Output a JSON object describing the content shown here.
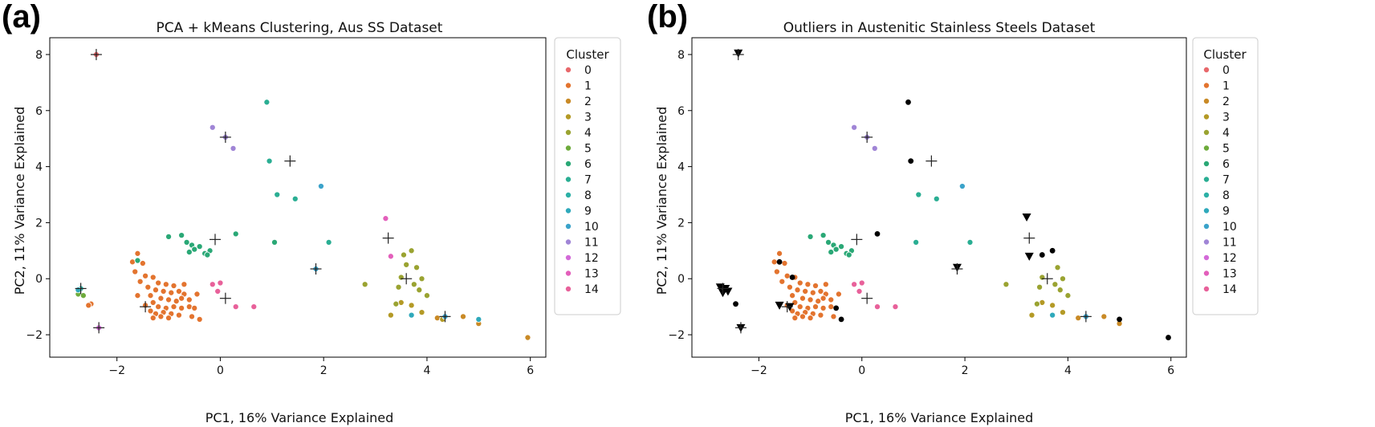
{
  "palette": [
    "#e8686b",
    "#e3742f",
    "#c98a26",
    "#b49a26",
    "#9aa331",
    "#6eab3c",
    "#2aa876",
    "#2aae93",
    "#2cb0a6",
    "#2fa9bb",
    "#3ba3ca",
    "#a085d6",
    "#d36ad8",
    "#e35fbb",
    "#e8619a"
  ],
  "chart_data": [
    {
      "type": "scatter",
      "panel_label": "(a)",
      "title": "PCA + kMeans Clustering, Aus SS Dataset",
      "xlabel": "PC1, 16% Variance Explained",
      "ylabel": "PC2, 11% Variance Explained",
      "xlim": [
        -3.3,
        6.3
      ],
      "ylim": [
        -2.8,
        8.6
      ],
      "xticks": [
        -2,
        0,
        2,
        4,
        6
      ],
      "yticks": [
        -2,
        0,
        2,
        4,
        6,
        8
      ],
      "grid": false,
      "legend": {
        "title": "Cluster",
        "placement": "outside-right",
        "entries": [
          "0",
          "1",
          "2",
          "3",
          "4",
          "5",
          "6",
          "7",
          "8",
          "9",
          "10",
          "11",
          "12",
          "13",
          "14"
        ]
      },
      "points": [
        [
          -2.4,
          8.0,
          0
        ],
        [
          -1.6,
          0.9,
          1
        ],
        [
          -1.7,
          0.6,
          1
        ],
        [
          -1.5,
          0.55,
          1
        ],
        [
          -1.65,
          0.25,
          1
        ],
        [
          -1.45,
          0.1,
          1
        ],
        [
          -1.3,
          0.05,
          1
        ],
        [
          -1.55,
          -0.1,
          1
        ],
        [
          -1.2,
          -0.15,
          1
        ],
        [
          -1.05,
          -0.2,
          1
        ],
        [
          -1.4,
          -0.3,
          1
        ],
        [
          -0.9,
          -0.25,
          1
        ],
        [
          -1.25,
          -0.4,
          1
        ],
        [
          -1.1,
          -0.45,
          1
        ],
        [
          -0.95,
          -0.5,
          1
        ],
        [
          -0.8,
          -0.45,
          1
        ],
        [
          -0.7,
          -0.55,
          1
        ],
        [
          -1.35,
          -0.6,
          1
        ],
        [
          -1.15,
          -0.7,
          1
        ],
        [
          -1.0,
          -0.75,
          1
        ],
        [
          -0.85,
          -0.8,
          1
        ],
        [
          -0.75,
          -0.7,
          1
        ],
        [
          -0.6,
          -0.75,
          1
        ],
        [
          -1.3,
          -0.85,
          1
        ],
        [
          -1.45,
          -0.95,
          1
        ],
        [
          -1.2,
          -1.0,
          1
        ],
        [
          -1.05,
          -1.05,
          1
        ],
        [
          -0.9,
          -1.0,
          1
        ],
        [
          -0.75,
          -1.05,
          1
        ],
        [
          -0.6,
          -1.0,
          1
        ],
        [
          -1.35,
          -1.15,
          1
        ],
        [
          -1.25,
          -1.25,
          1
        ],
        [
          -1.1,
          -1.2,
          1
        ],
        [
          -0.95,
          -1.25,
          1
        ],
        [
          -0.8,
          -1.3,
          1
        ],
        [
          -1.3,
          -1.4,
          1
        ],
        [
          -1.15,
          -1.35,
          1
        ],
        [
          -1.0,
          -1.4,
          1
        ],
        [
          -0.5,
          -1.05,
          1
        ],
        [
          -0.55,
          -1.35,
          1
        ],
        [
          -0.4,
          -1.45,
          1
        ],
        [
          -0.45,
          -0.55,
          1
        ],
        [
          -1.6,
          -0.6,
          1
        ],
        [
          -0.7,
          -0.2,
          1
        ],
        [
          -2.5,
          -0.9,
          1
        ],
        [
          -2.55,
          -0.95,
          1
        ],
        [
          4.7,
          -1.35,
          2
        ],
        [
          5.0,
          -1.6,
          2
        ],
        [
          5.95,
          -2.1,
          2
        ],
        [
          4.2,
          -1.4,
          2
        ],
        [
          3.3,
          -1.3,
          3
        ],
        [
          3.5,
          -0.85,
          3
        ],
        [
          3.7,
          -0.95,
          3
        ],
        [
          3.9,
          -1.2,
          3
        ],
        [
          4.3,
          -1.45,
          3
        ],
        [
          2.8,
          -0.2,
          4
        ],
        [
          3.4,
          -0.9,
          4
        ],
        [
          3.5,
          0.05,
          4
        ],
        [
          3.6,
          0.5,
          4
        ],
        [
          3.7,
          1.0,
          4
        ],
        [
          3.8,
          0.4,
          4
        ],
        [
          3.9,
          0.0,
          4
        ],
        [
          3.85,
          -0.4,
          4
        ],
        [
          4.0,
          -0.6,
          4
        ],
        [
          3.55,
          0.85,
          4
        ],
        [
          3.45,
          -0.3,
          4
        ],
        [
          3.75,
          -0.2,
          4
        ],
        [
          -2.75,
          -0.55,
          5
        ],
        [
          -2.65,
          -0.6,
          5
        ],
        [
          -1.6,
          0.65,
          6
        ],
        [
          -1.0,
          1.5,
          6
        ],
        [
          -0.75,
          1.55,
          6
        ],
        [
          -0.65,
          1.3,
          6
        ],
        [
          -0.55,
          1.2,
          6
        ],
        [
          -0.5,
          1.05,
          6
        ],
        [
          -0.4,
          1.15,
          6
        ],
        [
          -0.3,
          0.9,
          6
        ],
        [
          -0.6,
          0.95,
          6
        ],
        [
          -0.2,
          1.0,
          6
        ],
        [
          -0.25,
          0.85,
          6
        ],
        [
          0.3,
          1.6,
          6
        ],
        [
          1.05,
          1.3,
          6
        ],
        [
          0.9,
          6.3,
          7
        ],
        [
          0.95,
          4.2,
          7
        ],
        [
          1.1,
          3.0,
          7
        ],
        [
          1.45,
          2.85,
          7
        ],
        [
          2.1,
          1.3,
          7
        ],
        [
          -2.7,
          -0.35,
          8
        ],
        [
          3.7,
          -1.3,
          9
        ],
        [
          5.0,
          -1.45,
          9
        ],
        [
          -2.75,
          -0.4,
          9
        ],
        [
          1.95,
          3.3,
          10
        ],
        [
          1.85,
          0.35,
          10
        ],
        [
          4.35,
          -1.35,
          10
        ],
        [
          -0.15,
          5.4,
          11
        ],
        [
          0.1,
          5.05,
          11
        ],
        [
          0.25,
          4.65,
          11
        ],
        [
          -2.35,
          -1.75,
          12
        ],
        [
          3.2,
          2.15,
          13
        ],
        [
          3.3,
          0.8,
          13
        ],
        [
          -0.15,
          -0.2,
          14
        ],
        [
          0.0,
          -0.15,
          14
        ],
        [
          -0.05,
          -0.45,
          14
        ],
        [
          0.3,
          -1.0,
          14
        ],
        [
          0.65,
          -1.0,
          14
        ]
      ],
      "centroids": [
        [
          -2.4,
          8.0
        ],
        [
          -1.45,
          -1.0
        ],
        [
          -0.1,
          1.4
        ],
        [
          0.1,
          -0.7
        ],
        [
          0.1,
          5.05
        ],
        [
          1.35,
          4.2
        ],
        [
          1.85,
          0.35
        ],
        [
          3.25,
          1.45
        ],
        [
          3.6,
          0.0
        ],
        [
          4.35,
          -1.35
        ],
        [
          -2.35,
          -1.75
        ],
        [
          -2.7,
          -0.35
        ]
      ],
      "outliers": []
    },
    {
      "type": "scatter",
      "panel_label": "(b)",
      "title": "Outliers in Austenitic Stainless Steels Dataset",
      "xlabel": "PC1, 16% Variance Explained",
      "ylabel": "PC2, 11% Variance Explained",
      "xlim": [
        -3.3,
        6.3
      ],
      "ylim": [
        -2.8,
        8.6
      ],
      "xticks": [
        -2,
        0,
        2,
        4,
        6
      ],
      "yticks": [
        -2,
        0,
        2,
        4,
        6,
        8
      ],
      "grid": false,
      "legend": {
        "title": "Cluster",
        "placement": "outside-right",
        "entries": [
          "0",
          "1",
          "2",
          "3",
          "4",
          "5",
          "6",
          "7",
          "8",
          "9",
          "10",
          "11",
          "12",
          "13",
          "14"
        ]
      },
      "points": [
        [
          -1.6,
          0.9,
          1
        ],
        [
          -1.7,
          0.6,
          1
        ],
        [
          -1.5,
          0.55,
          1
        ],
        [
          -1.65,
          0.25,
          1
        ],
        [
          -1.45,
          0.1,
          1
        ],
        [
          -1.3,
          0.05,
          1
        ],
        [
          -1.55,
          -0.1,
          1
        ],
        [
          -1.2,
          -0.15,
          1
        ],
        [
          -1.05,
          -0.2,
          1
        ],
        [
          -1.4,
          -0.3,
          1
        ],
        [
          -0.9,
          -0.25,
          1
        ],
        [
          -1.25,
          -0.4,
          1
        ],
        [
          -1.1,
          -0.45,
          1
        ],
        [
          -0.95,
          -0.5,
          1
        ],
        [
          -0.8,
          -0.45,
          1
        ],
        [
          -0.7,
          -0.55,
          1
        ],
        [
          -1.35,
          -0.6,
          1
        ],
        [
          -1.15,
          -0.7,
          1
        ],
        [
          -1.0,
          -0.75,
          1
        ],
        [
          -0.85,
          -0.8,
          1
        ],
        [
          -0.75,
          -0.7,
          1
        ],
        [
          -0.6,
          -0.75,
          1
        ],
        [
          -1.3,
          -0.85,
          1
        ],
        [
          -1.45,
          -0.95,
          1
        ],
        [
          -1.2,
          -1.0,
          1
        ],
        [
          -1.05,
          -1.05,
          1
        ],
        [
          -0.9,
          -1.0,
          1
        ],
        [
          -0.75,
          -1.05,
          1
        ],
        [
          -0.6,
          -1.0,
          1
        ],
        [
          -1.35,
          -1.15,
          1
        ],
        [
          -1.25,
          -1.25,
          1
        ],
        [
          -1.1,
          -1.2,
          1
        ],
        [
          -0.95,
          -1.25,
          1
        ],
        [
          -0.8,
          -1.3,
          1
        ],
        [
          -1.3,
          -1.4,
          1
        ],
        [
          -1.15,
          -1.35,
          1
        ],
        [
          -1.0,
          -1.4,
          1
        ],
        [
          -0.55,
          -1.35,
          1
        ],
        [
          -0.45,
          -0.55,
          1
        ],
        [
          -0.7,
          -0.2,
          1
        ],
        [
          4.7,
          -1.35,
          2
        ],
        [
          5.0,
          -1.6,
          2
        ],
        [
          4.2,
          -1.4,
          2
        ],
        [
          3.3,
          -1.3,
          3
        ],
        [
          3.5,
          -0.85,
          3
        ],
        [
          3.7,
          -0.95,
          3
        ],
        [
          3.9,
          -1.2,
          3
        ],
        [
          2.8,
          -0.2,
          4
        ],
        [
          3.4,
          -0.9,
          4
        ],
        [
          3.5,
          0.05,
          4
        ],
        [
          3.8,
          0.4,
          4
        ],
        [
          3.9,
          0.0,
          4
        ],
        [
          3.85,
          -0.4,
          4
        ],
        [
          4.0,
          -0.6,
          4
        ],
        [
          3.45,
          -0.3,
          4
        ],
        [
          3.75,
          -0.2,
          4
        ],
        [
          -1.0,
          1.5,
          6
        ],
        [
          -0.75,
          1.55,
          6
        ],
        [
          -0.65,
          1.3,
          6
        ],
        [
          -0.55,
          1.2,
          6
        ],
        [
          -0.5,
          1.05,
          6
        ],
        [
          -0.4,
          1.15,
          6
        ],
        [
          -0.3,
          0.9,
          6
        ],
        [
          -0.6,
          0.95,
          6
        ],
        [
          -0.2,
          1.0,
          6
        ],
        [
          -0.25,
          0.85,
          6
        ],
        [
          1.1,
          3.0,
          7
        ],
        [
          1.45,
          2.85,
          7
        ],
        [
          2.1,
          1.3,
          7
        ],
        [
          1.05,
          1.3,
          7
        ],
        [
          3.7,
          -1.3,
          9
        ],
        [
          1.95,
          3.3,
          10
        ],
        [
          4.35,
          -1.35,
          10
        ],
        [
          -0.15,
          5.4,
          11
        ],
        [
          0.1,
          5.05,
          11
        ],
        [
          0.25,
          4.65,
          11
        ],
        [
          -0.15,
          -0.2,
          14
        ],
        [
          0.0,
          -0.15,
          14
        ],
        [
          -0.05,
          -0.45,
          14
        ],
        [
          0.3,
          -1.0,
          14
        ],
        [
          0.65,
          -1.0,
          14
        ]
      ],
      "centroids": [
        [
          -2.4,
          8.0
        ],
        [
          -1.45,
          -1.0
        ],
        [
          -0.1,
          1.4
        ],
        [
          0.1,
          -0.7
        ],
        [
          0.1,
          5.05
        ],
        [
          1.35,
          4.2
        ],
        [
          1.85,
          0.35
        ],
        [
          3.25,
          1.45
        ],
        [
          3.6,
          0.0
        ],
        [
          4.35,
          -1.35
        ],
        [
          -2.35,
          -1.75
        ],
        [
          -2.7,
          -0.35
        ]
      ],
      "outliers": [
        {
          "x": 0.9,
          "y": 6.3,
          "marker": "dot"
        },
        {
          "x": 0.95,
          "y": 4.2,
          "marker": "dot"
        },
        {
          "x": 0.3,
          "y": 1.6,
          "marker": "dot"
        },
        {
          "x": -1.6,
          "y": 0.6,
          "marker": "dot"
        },
        {
          "x": -1.35,
          "y": 0.05,
          "marker": "dot"
        },
        {
          "x": -2.45,
          "y": -0.9,
          "marker": "dot"
        },
        {
          "x": -0.5,
          "y": -1.05,
          "marker": "dot"
        },
        {
          "x": -0.4,
          "y": -1.45,
          "marker": "dot"
        },
        {
          "x": 3.5,
          "y": 0.85,
          "marker": "dot"
        },
        {
          "x": 3.7,
          "y": 1.0,
          "marker": "dot"
        },
        {
          "x": 5.0,
          "y": -1.45,
          "marker": "dot"
        },
        {
          "x": 5.95,
          "y": -2.1,
          "marker": "dot"
        },
        {
          "x": -2.4,
          "y": 8.05,
          "marker": "triangle"
        },
        {
          "x": -2.75,
          "y": -0.3,
          "marker": "triangle"
        },
        {
          "x": -2.65,
          "y": -0.35,
          "marker": "triangle"
        },
        {
          "x": -2.7,
          "y": -0.5,
          "marker": "triangle"
        },
        {
          "x": -2.6,
          "y": -0.45,
          "marker": "triangle"
        },
        {
          "x": -1.6,
          "y": -0.95,
          "marker": "triangle"
        },
        {
          "x": -1.4,
          "y": -1.0,
          "marker": "triangle"
        },
        {
          "x": -2.35,
          "y": -1.75,
          "marker": "triangle"
        },
        {
          "x": 1.85,
          "y": 0.4,
          "marker": "triangle"
        },
        {
          "x": 3.2,
          "y": 2.2,
          "marker": "triangle"
        },
        {
          "x": 3.25,
          "y": 0.8,
          "marker": "triangle"
        }
      ]
    }
  ]
}
